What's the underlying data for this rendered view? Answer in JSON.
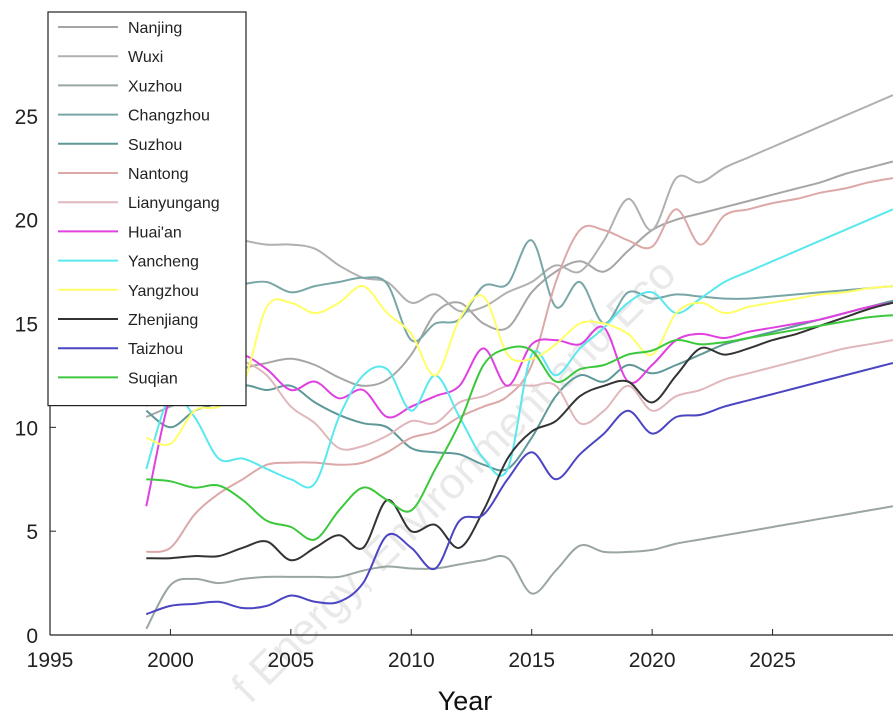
{
  "watermark": "f Energy, Environment and Eco",
  "chart_data": {
    "type": "line",
    "title": "",
    "xlabel": "Year",
    "ylabel": "",
    "xlim": [
      1995,
      2030
    ],
    "ylim": [
      0,
      30
    ],
    "xticks": [
      1995,
      2000,
      2005,
      2010,
      2015,
      2020,
      2025
    ],
    "yticks": [
      0,
      5,
      10,
      15,
      20,
      25
    ],
    "grid": false,
    "legend_position": "top-left",
    "series": [
      {
        "name": "Nanjing",
        "color": "#a6a6a6",
        "x": [
          1999,
          2000,
          2001,
          2002,
          2003,
          2004,
          2005,
          2006,
          2007,
          2008,
          2009,
          2010,
          2011,
          2012,
          2013,
          2014,
          2015,
          2016,
          2017,
          2018,
          2019,
          2020,
          2021,
          2022,
          2023,
          2024,
          2025,
          2026,
          2027,
          2028,
          2029,
          2030
        ],
        "y": [
          10.5,
          11.0,
          11.5,
          12.0,
          12.8,
          13.1,
          13.3,
          13.0,
          12.4,
          12.0,
          12.3,
          13.5,
          15.5,
          16.0,
          15.0,
          14.8,
          16.5,
          17.5,
          18.0,
          17.5,
          18.5,
          19.5,
          20.0,
          20.3,
          20.6,
          20.9,
          21.2,
          21.5,
          21.8,
          22.2,
          22.5,
          22.8
        ]
      },
      {
        "name": "Wuxi",
        "color": "#b0b0b0",
        "x": [
          1999,
          2000,
          2001,
          2002,
          2003,
          2004,
          2005,
          2006,
          2007,
          2008,
          2009,
          2010,
          2011,
          2012,
          2013,
          2014,
          2015,
          2016,
          2017,
          2018,
          2019,
          2020,
          2021,
          2022,
          2023,
          2024,
          2025,
          2026,
          2027,
          2028,
          2029,
          2030
        ],
        "y": [
          16.0,
          17.5,
          18.5,
          19.2,
          19.0,
          18.8,
          18.8,
          18.6,
          17.8,
          17.2,
          17.0,
          16.0,
          16.4,
          15.6,
          15.8,
          16.5,
          17.0,
          17.8,
          17.5,
          19.0,
          21.0,
          19.5,
          22.0,
          21.8,
          22.5,
          23.0,
          23.5,
          24.0,
          24.5,
          25.0,
          25.5,
          26.0
        ]
      },
      {
        "name": "Xuzhou",
        "color": "#9aa6a0",
        "x": [
          1999,
          2000,
          2001,
          2002,
          2003,
          2004,
          2005,
          2006,
          2007,
          2008,
          2009,
          2010,
          2011,
          2012,
          2013,
          2014,
          2015,
          2016,
          2017,
          2018,
          2019,
          2020,
          2021,
          2022,
          2023,
          2024,
          2025,
          2026,
          2027,
          2028,
          2029,
          2030
        ],
        "y": [
          0.3,
          2.4,
          2.7,
          2.5,
          2.7,
          2.8,
          2.8,
          2.8,
          2.8,
          3.1,
          3.3,
          3.2,
          3.2,
          3.4,
          3.6,
          3.7,
          2.0,
          3.1,
          4.3,
          4.0,
          4.0,
          4.1,
          4.4,
          4.6,
          4.8,
          5.0,
          5.2,
          5.4,
          5.6,
          5.8,
          6.0,
          6.2
        ]
      },
      {
        "name": "Changzhou",
        "color": "#78a6a6",
        "x": [
          1999,
          2000,
          2001,
          2002,
          2003,
          2004,
          2005,
          2006,
          2007,
          2008,
          2009,
          2010,
          2011,
          2012,
          2013,
          2014,
          2015,
          2016,
          2017,
          2018,
          2019,
          2020,
          2021,
          2022,
          2023,
          2024,
          2025,
          2026,
          2027,
          2028,
          2029,
          2030
        ],
        "y": [
          15.0,
          16.0,
          16.5,
          16.8,
          16.9,
          17.0,
          16.5,
          16.8,
          17.0,
          17.2,
          16.9,
          14.2,
          15.0,
          15.2,
          16.8,
          16.9,
          19.0,
          15.8,
          17.0,
          15.0,
          16.5,
          16.2,
          16.4,
          16.3,
          16.2,
          16.2,
          16.3,
          16.4,
          16.5,
          16.6,
          16.7,
          16.8
        ]
      },
      {
        "name": "Suzhou",
        "color": "#5f9898",
        "x": [
          1999,
          2000,
          2001,
          2002,
          2003,
          2004,
          2005,
          2006,
          2007,
          2008,
          2009,
          2010,
          2011,
          2012,
          2013,
          2014,
          2015,
          2016,
          2017,
          2018,
          2019,
          2020,
          2021,
          2022,
          2023,
          2024,
          2025,
          2026,
          2027,
          2028,
          2029,
          2030
        ],
        "y": [
          10.8,
          10.0,
          10.8,
          11.2,
          12.0,
          11.8,
          12.0,
          11.2,
          10.6,
          10.2,
          10.0,
          9.0,
          8.8,
          8.7,
          8.2,
          8.0,
          9.5,
          11.5,
          12.5,
          12.2,
          13.0,
          12.6,
          13.0,
          13.5,
          14.0,
          14.3,
          14.6,
          14.9,
          15.2,
          15.5,
          15.8,
          16.1
        ]
      },
      {
        "name": "Nantong",
        "color": "#dca8a8",
        "x": [
          1999,
          2000,
          2001,
          2002,
          2003,
          2004,
          2005,
          2006,
          2007,
          2008,
          2009,
          2010,
          2011,
          2012,
          2013,
          2014,
          2015,
          2016,
          2017,
          2018,
          2019,
          2020,
          2021,
          2022,
          2023,
          2024,
          2025,
          2026,
          2027,
          2028,
          2029,
          2030
        ],
        "y": [
          4.0,
          4.2,
          5.8,
          6.8,
          7.5,
          8.2,
          8.3,
          8.3,
          8.2,
          8.3,
          8.8,
          9.5,
          9.8,
          10.5,
          11.0,
          11.5,
          13.0,
          17.0,
          19.5,
          19.5,
          19.0,
          18.7,
          20.5,
          18.8,
          20.2,
          20.5,
          20.8,
          21.0,
          21.3,
          21.5,
          21.8,
          22.0
        ]
      },
      {
        "name": "Lianyungang",
        "color": "#e0b8bc",
        "x": [
          1999,
          2000,
          2001,
          2002,
          2003,
          2004,
          2005,
          2006,
          2007,
          2008,
          2009,
          2010,
          2011,
          2012,
          2013,
          2014,
          2015,
          2016,
          2017,
          2018,
          2019,
          2020,
          2021,
          2022,
          2023,
          2024,
          2025,
          2026,
          2027,
          2028,
          2029,
          2030
        ],
        "y": [
          11.0,
          12.5,
          13.3,
          13.5,
          13.2,
          12.5,
          11.0,
          10.2,
          9.0,
          9.1,
          9.6,
          10.3,
          10.2,
          11.2,
          11.5,
          12.0,
          12.0,
          12.0,
          10.2,
          10.8,
          12.0,
          10.8,
          11.5,
          11.8,
          12.3,
          12.6,
          12.9,
          13.2,
          13.5,
          13.8,
          14.0,
          14.2
        ]
      },
      {
        "name": "Huai'an",
        "color": "#e040e0",
        "x": [
          1999,
          2000,
          2001,
          2002,
          2003,
          2004,
          2005,
          2006,
          2007,
          2008,
          2009,
          2010,
          2011,
          2012,
          2013,
          2014,
          2015,
          2016,
          2017,
          2018,
          2019,
          2020,
          2021,
          2022,
          2023,
          2024,
          2025,
          2026,
          2027,
          2028,
          2029,
          2030
        ],
        "y": [
          6.2,
          11.5,
          12.8,
          13.5,
          13.5,
          12.8,
          11.8,
          12.2,
          11.4,
          11.8,
          10.5,
          11.0,
          11.5,
          12.0,
          13.8,
          12.0,
          14.0,
          14.2,
          14.0,
          14.8,
          12.2,
          13.0,
          14.2,
          14.5,
          14.3,
          14.6,
          14.8,
          15.0,
          15.2,
          15.5,
          15.8,
          16.0
        ]
      },
      {
        "name": "Yancheng",
        "color": "#59e8ee",
        "x": [
          1999,
          2000,
          2001,
          2002,
          2003,
          2004,
          2005,
          2006,
          2007,
          2008,
          2009,
          2010,
          2011,
          2012,
          2013,
          2014,
          2015,
          2016,
          2017,
          2018,
          2019,
          2020,
          2021,
          2022,
          2023,
          2024,
          2025,
          2026,
          2027,
          2028,
          2029,
          2030
        ],
        "y": [
          8.0,
          11.5,
          10.5,
          8.5,
          8.5,
          8.0,
          7.5,
          7.3,
          10.5,
          12.5,
          12.8,
          10.8,
          12.5,
          10.5,
          8.5,
          8.0,
          13.5,
          12.5,
          13.8,
          14.8,
          16.0,
          16.5,
          15.5,
          16.2,
          17.0,
          17.5,
          18.0,
          18.5,
          19.0,
          19.5,
          20.0,
          20.5
        ]
      },
      {
        "name": "Yangzhou",
        "color": "#ffff66",
        "x": [
          1999,
          2000,
          2001,
          2002,
          2003,
          2004,
          2005,
          2006,
          2007,
          2008,
          2009,
          2010,
          2011,
          2012,
          2013,
          2014,
          2015,
          2016,
          2017,
          2018,
          2019,
          2020,
          2021,
          2022,
          2023,
          2024,
          2025,
          2026,
          2027,
          2028,
          2029,
          2030
        ],
        "y": [
          9.5,
          9.2,
          10.8,
          11.0,
          12.0,
          15.8,
          16.0,
          15.5,
          16.0,
          16.8,
          15.5,
          14.5,
          12.5,
          15.2,
          16.3,
          13.5,
          13.3,
          14.0,
          15.0,
          15.0,
          14.5,
          13.5,
          15.5,
          16.0,
          15.5,
          15.8,
          16.0,
          16.2,
          16.4,
          16.5,
          16.7,
          16.8
        ]
      },
      {
        "name": "Zhenjiang",
        "color": "#333333",
        "x": [
          1999,
          2000,
          2001,
          2002,
          2003,
          2004,
          2005,
          2006,
          2007,
          2008,
          2009,
          2010,
          2011,
          2012,
          2013,
          2014,
          2015,
          2016,
          2017,
          2018,
          2019,
          2020,
          2021,
          2022,
          2023,
          2024,
          2025,
          2026,
          2027,
          2028,
          2029,
          2030
        ],
        "y": [
          3.7,
          3.7,
          3.8,
          3.8,
          4.2,
          4.5,
          3.6,
          4.2,
          4.8,
          4.2,
          6.5,
          5.0,
          5.3,
          4.2,
          6.0,
          8.5,
          9.8,
          10.3,
          11.5,
          12.0,
          12.2,
          11.2,
          12.5,
          13.8,
          13.5,
          13.8,
          14.2,
          14.5,
          14.9,
          15.3,
          15.7,
          16.0
        ]
      },
      {
        "name": "Taizhou",
        "color": "#4b45c2",
        "x": [
          1999,
          2000,
          2001,
          2002,
          2003,
          2004,
          2005,
          2006,
          2007,
          2008,
          2009,
          2010,
          2011,
          2012,
          2013,
          2014,
          2015,
          2016,
          2017,
          2018,
          2019,
          2020,
          2021,
          2022,
          2023,
          2024,
          2025,
          2026,
          2027,
          2028,
          2029,
          2030
        ],
        "y": [
          1.0,
          1.4,
          1.5,
          1.6,
          1.3,
          1.4,
          1.9,
          1.6,
          1.6,
          2.5,
          4.8,
          4.2,
          3.2,
          5.5,
          5.8,
          7.5,
          8.8,
          7.5,
          8.7,
          9.7,
          10.8,
          9.7,
          10.5,
          10.6,
          11.0,
          11.3,
          11.6,
          11.9,
          12.2,
          12.5,
          12.8,
          13.1
        ]
      },
      {
        "name": "Suqian",
        "color": "#3cc83c",
        "x": [
          1999,
          2000,
          2001,
          2002,
          2003,
          2004,
          2005,
          2006,
          2007,
          2008,
          2009,
          2010,
          2011,
          2012,
          2013,
          2014,
          2015,
          2016,
          2017,
          2018,
          2019,
          2020,
          2021,
          2022,
          2023,
          2024,
          2025,
          2026,
          2027,
          2028,
          2029,
          2030
        ],
        "y": [
          7.5,
          7.4,
          7.1,
          7.2,
          6.5,
          5.5,
          5.2,
          4.6,
          6.0,
          7.1,
          6.5,
          6.0,
          8.0,
          10.2,
          13.0,
          13.8,
          13.7,
          12.2,
          12.8,
          13.0,
          13.5,
          13.7,
          14.2,
          14.0,
          14.1,
          14.3,
          14.5,
          14.7,
          14.9,
          15.1,
          15.3,
          15.4
        ]
      }
    ]
  }
}
